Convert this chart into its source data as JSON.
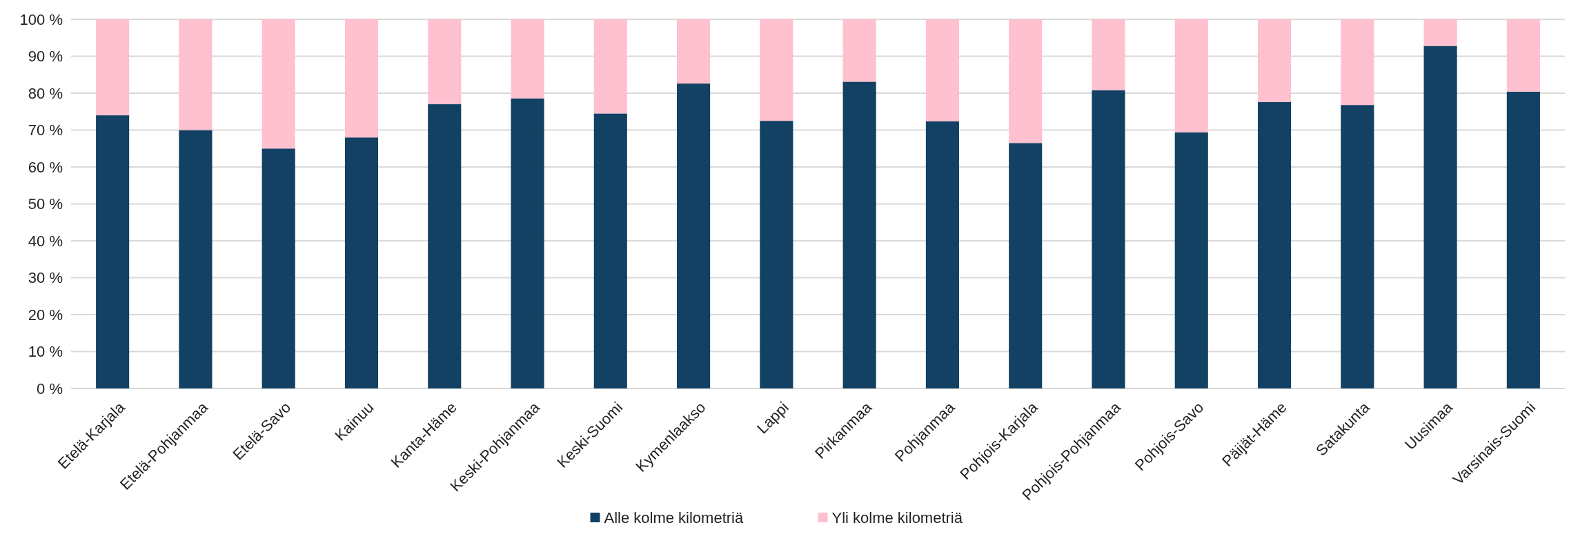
{
  "chart_data": {
    "type": "bar",
    "stacked": true,
    "categories": [
      "Etelä-Karjala",
      "Etelä-Pohjanmaa",
      "Etelä-Savo",
      "Kainuu",
      "Kanta-Häme",
      "Keski-Pohjanmaa",
      "Keski-Suomi",
      "Kymenlaakso",
      "Lappi",
      "Pirkanmaa",
      "Pohjanmaa",
      "Pohjois-Karjala",
      "Pohjois-Pohjanmaa",
      "Pohjois-Savo",
      "Päijät-Häme",
      "Satakunta",
      "Uusimaa",
      "Varsinais-Suomi"
    ],
    "series": [
      {
        "name": "Alle kolme kilometriä",
        "color": "#124163",
        "values": [
          74,
          70,
          65,
          68,
          77,
          78.6,
          74.5,
          82.6,
          72.5,
          83.1,
          72.4,
          66.5,
          80.8,
          69.4,
          77.6,
          76.8,
          92.8,
          80.4
        ]
      },
      {
        "name": "Yli kolme kilometriä",
        "color": "#ffc0cf",
        "values": [
          26,
          30,
          35,
          32,
          23,
          21.4,
          25.5,
          17.4,
          27.5,
          16.9,
          27.6,
          33.5,
          19.2,
          30.6,
          22.4,
          23.2,
          7.2,
          19.6
        ]
      }
    ],
    "ylim": [
      0,
      100
    ],
    "yticks": [
      {
        "value": 0,
        "label": "0 %"
      },
      {
        "value": 10,
        "label": "10 %"
      },
      {
        "value": 20,
        "label": "20 %"
      },
      {
        "value": 30,
        "label": "30 %"
      },
      {
        "value": 40,
        "label": "40 %"
      },
      {
        "value": 50,
        "label": "50 %"
      },
      {
        "value": 60,
        "label": "60 %"
      },
      {
        "value": 70,
        "label": "70 %"
      },
      {
        "value": 80,
        "label": "80 %"
      },
      {
        "value": 90,
        "label": "90 %"
      },
      {
        "value": 100,
        "label": "100 %"
      }
    ],
    "grid": "y",
    "legend": "bottom"
  }
}
